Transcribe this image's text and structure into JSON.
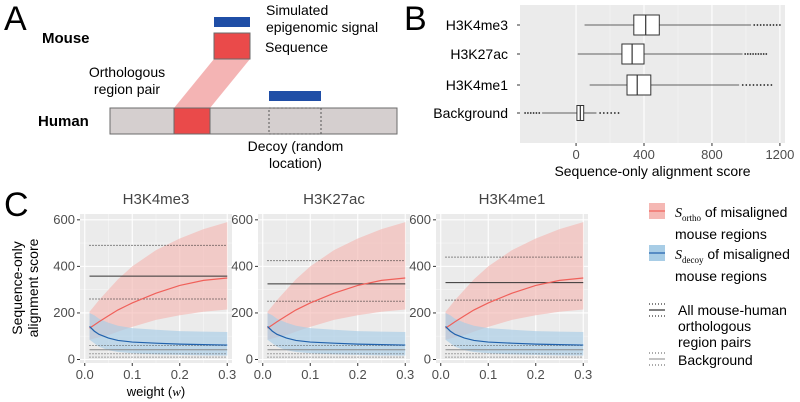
{
  "panelA": {
    "letter": "A",
    "mouse_label": "Mouse",
    "human_label": "Human",
    "signal_label": "Simulated epigenomic signal",
    "sequence_label": "Sequence",
    "ortho_label": "Orthologous region pair",
    "decoy_label": "Decoy (random location)",
    "colors": {
      "signal": "#1f4ea6",
      "sequence": "#ea4a4a",
      "chrom": "#d5cfcf",
      "link": "#f4b4b4"
    }
  },
  "panelB": {
    "letter": "B"
  },
  "panelC": {
    "letter": "C",
    "legend": {
      "ortho_prefix": "S",
      "ortho_sub": "ortho",
      "ortho_rest": " of misaligned",
      "ortho_line2": "mouse regions",
      "decoy_prefix": "S",
      "decoy_sub": "decoy",
      "decoy_rest": " of misaligned",
      "decoy_line2": "mouse regions",
      "all_line1": "All mouse-human",
      "all_line2": "orthologous",
      "all_line3": "region pairs",
      "bg_label": "Background"
    },
    "colors": {
      "ortho_line": "#f0605a",
      "ortho_fill": "#f5b8b4",
      "decoy_line": "#2162ad",
      "decoy_fill": "#a8cde6",
      "panel_bg": "#ebebeb"
    }
  },
  "chart_data": [
    {
      "type": "boxplot",
      "orientation": "horizontal",
      "categories": [
        "H3K4me3",
        "H3K27ac",
        "H3K4me1",
        "Background"
      ],
      "xlabel": "Sequence-only alignment score",
      "xlim": [
        -330,
        1230
      ],
      "xticks": [
        0,
        400,
        800,
        1200
      ],
      "boxes": [
        {
          "name": "H3K4me3",
          "whisker_low": 50,
          "q1": 340,
          "median": 410,
          "q3": 490,
          "whisker_high": 1030,
          "outlier_max": 1200
        },
        {
          "name": "H3K27ac",
          "whisker_low": 10,
          "q1": 270,
          "median": 330,
          "q3": 400,
          "whisker_high": 980,
          "outlier_max": 1120
        },
        {
          "name": "H3K4me1",
          "whisker_low": 80,
          "q1": 300,
          "median": 360,
          "q3": 440,
          "whisker_high": 960,
          "outlier_max": 1150
        },
        {
          "name": "Background",
          "whisker_low": -200,
          "q1": 5,
          "median": 25,
          "q3": 45,
          "whisker_high": 120,
          "outlier_min": -300,
          "outlier_max": 250
        }
      ]
    },
    {
      "type": "line",
      "facets": [
        {
          "title": "H3K4me3",
          "all_median": 358,
          "all_dotted": [
            490,
            260
          ],
          "bg_solid": 42,
          "bg_dotted": [
            10,
            25,
            60
          ]
        },
        {
          "title": "H3K27ac",
          "all_median": 325,
          "all_dotted": [
            425,
            250
          ],
          "bg_solid": 42,
          "bg_dotted": [
            10,
            25,
            60
          ]
        },
        {
          "title": "H3K4me1",
          "all_median": 330,
          "all_dotted": [
            440,
            255
          ],
          "bg_solid": 42,
          "bg_dotted": [
            10,
            25,
            60
          ]
        }
      ],
      "x": [
        0.01,
        0.02,
        0.03,
        0.05,
        0.07,
        0.1,
        0.15,
        0.2,
        0.25,
        0.3
      ],
      "series": [
        {
          "name": "ortho",
          "values": [
            135,
            148,
            162,
            188,
            213,
            243,
            285,
            318,
            340,
            350
          ],
          "lower": [
            85,
            90,
            95,
            105,
            120,
            140,
            170,
            190,
            205,
            215
          ],
          "upper": [
            205,
            230,
            255,
            300,
            345,
            400,
            470,
            520,
            560,
            590
          ]
        },
        {
          "name": "decoy",
          "values": [
            142,
            122,
            108,
            92,
            82,
            75,
            70,
            66,
            64,
            62
          ],
          "lower": [
            85,
            70,
            55,
            40,
            32,
            27,
            22,
            20,
            18,
            17
          ],
          "upper": [
            200,
            190,
            175,
            158,
            145,
            135,
            128,
            122,
            120,
            118
          ]
        }
      ],
      "xlabel": "weight (w)",
      "ylabel": "Sequence-only alignment score",
      "xlim": [
        -0.01,
        0.31
      ],
      "ylim": [
        -15,
        625
      ],
      "xticks": [
        0.0,
        0.1,
        0.2,
        0.3
      ],
      "yticks": [
        0,
        200,
        400,
        600
      ]
    }
  ]
}
